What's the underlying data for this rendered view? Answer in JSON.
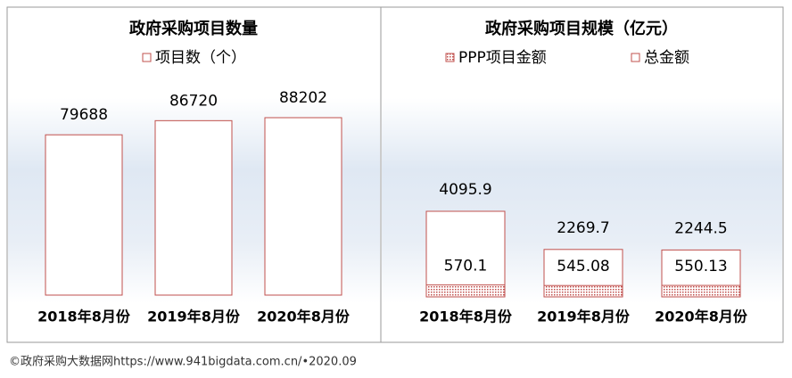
{
  "chart_data": [
    {
      "type": "bar",
      "title": "政府采购项目数量",
      "categories": [
        "2018年8月份",
        "2019年8月份",
        "2020年8月份"
      ],
      "series": [
        {
          "name": "项目数（个）",
          "color": "#c0504d",
          "values": [
            79688,
            86720,
            88202
          ]
        }
      ]
    },
    {
      "type": "overlay-bar",
      "title": "政府采购项目规模（亿元）",
      "categories": [
        "2018年8月份",
        "2019年8月份",
        "2020年8月份"
      ],
      "series": [
        {
          "name": "PPP项目金额",
          "color": "#c0504d",
          "values": [
            570.1,
            545.08,
            550.13
          ]
        },
        {
          "name": "总金额",
          "color": "#c0504d",
          "values": [
            4095.9,
            2269.7,
            2244.5
          ]
        }
      ]
    }
  ],
  "source": "©政府采购大数据网https://www.941bigdata.com.cn/•2020.09"
}
